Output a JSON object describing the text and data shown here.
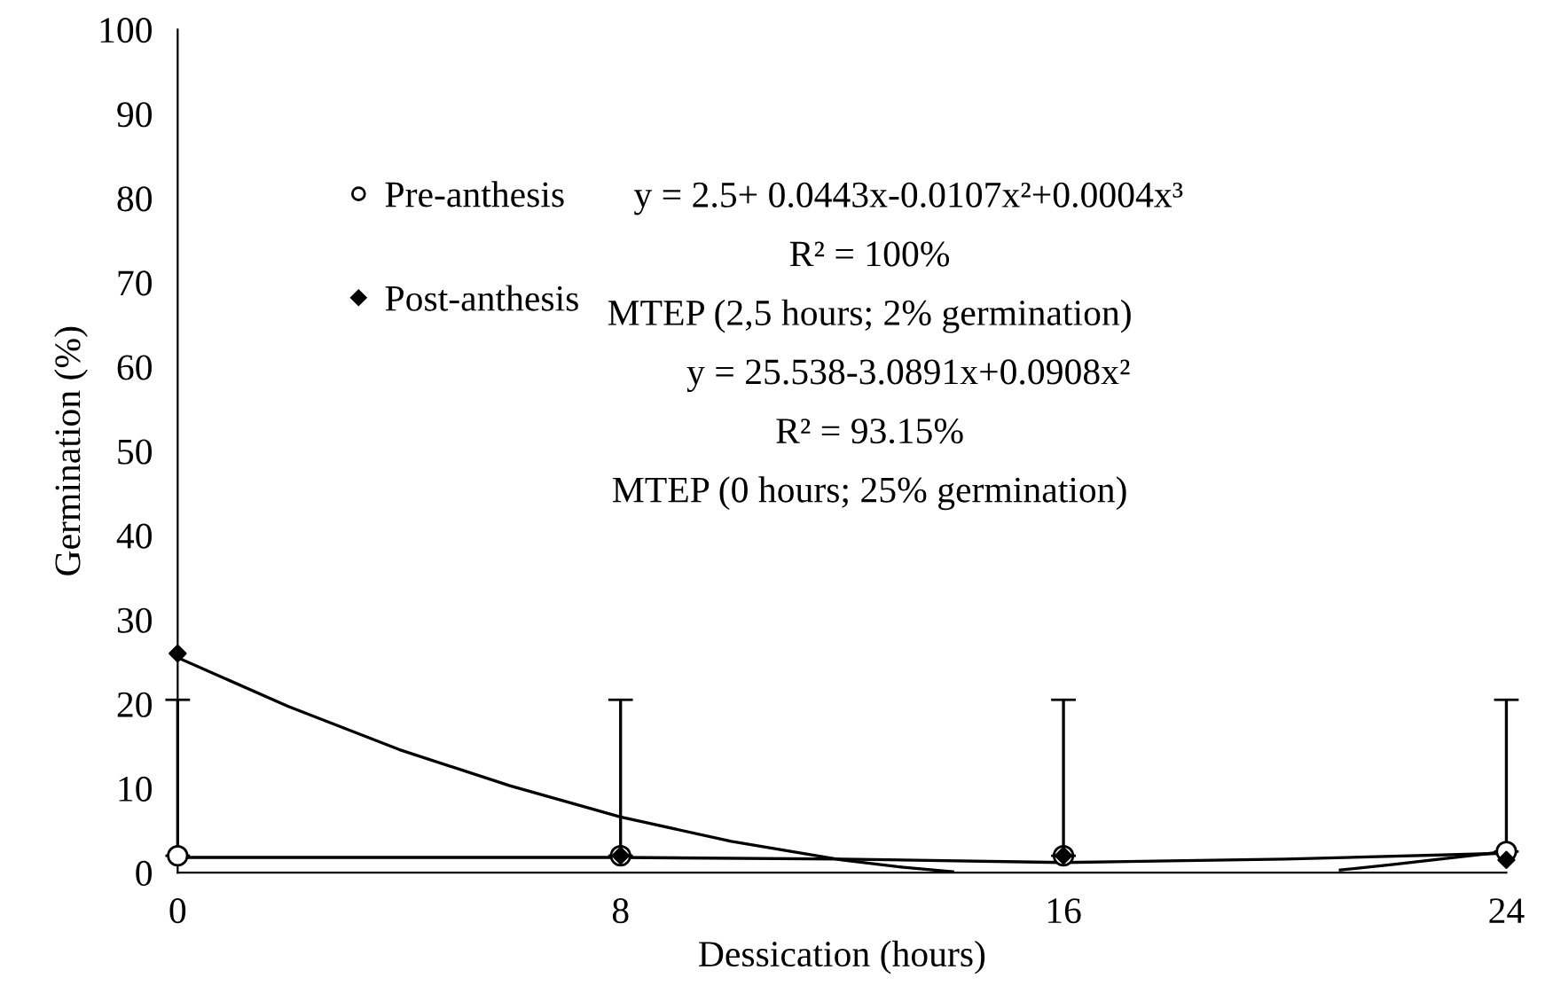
{
  "chart_data": {
    "type": "scatter",
    "xlabel": "Dessication (hours)",
    "ylabel": "Germination (%)",
    "x": [
      0,
      8,
      16,
      24
    ],
    "xlim": [
      0,
      24
    ],
    "xticks": [
      0,
      8,
      16,
      24
    ],
    "ylim": [
      0,
      100
    ],
    "yticks": [
      0,
      10,
      20,
      30,
      40,
      50,
      60,
      70,
      80,
      90,
      100
    ],
    "grid": false,
    "legend": "top left",
    "series": [
      {
        "name": "Pre-anthesis",
        "color": "#000000",
        "marker": "circle",
        "values": [
          2,
          2,
          2,
          2.5
        ],
        "errors": [
          [
            2,
            20.5
          ],
          [
            2,
            20.5
          ],
          [
            2,
            20.5
          ],
          [
            2.5,
            20.5
          ]
        ]
      },
      {
        "name": "Post-anthesis",
        "color": "#000000",
        "marker": "diamond",
        "values": [
          26,
          2,
          2,
          1.5
        ]
      },
      {
        "type": "line",
        "color": "#000000",
        "marker": "none",
        "x": [
          0,
          4,
          8,
          12,
          16,
          20,
          24
        ],
        "values": [
          1.8,
          1.8,
          1.8,
          1.6,
          1.2,
          1.6,
          2.3
        ]
      },
      {
        "type": "line",
        "color": "#000000",
        "marker": "none",
        "x": [
          0,
          2,
          4,
          6,
          8,
          10,
          12,
          13,
          14,
          15,
          20,
          21,
          22,
          24
        ],
        "values": [
          25.5,
          19.7,
          14.6,
          10.3,
          6.6,
          3.7,
          1.5,
          0.7,
          0.1,
          null,
          null,
          0.3,
          1.0,
          2.5
        ]
      }
    ],
    "annotations": [
      "y = 2.5+ 0.0443x-0.0107x²+0.0004x³",
      "R² = 100%",
      "MTEP (2,5 hours; 2% germination)",
      "y = 25.538-3.0891x+0.0908x²",
      "R² = 93.15%",
      "MTEP (0 hours; 25% germination)"
    ]
  }
}
